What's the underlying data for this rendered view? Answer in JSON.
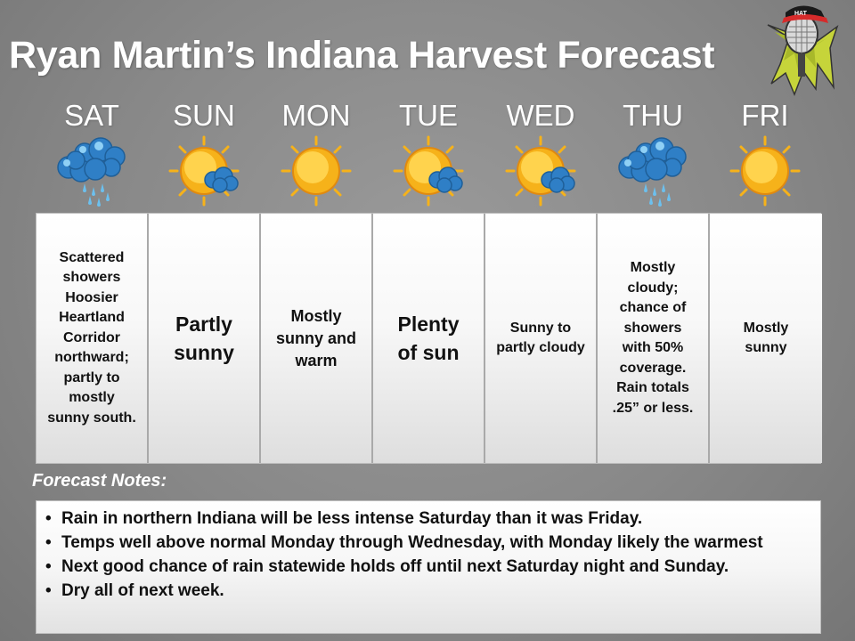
{
  "header": {
    "title": "Ryan Martin’s Indiana Harvest Forecast",
    "logo_text": "HAT"
  },
  "days": [
    {
      "label": "SAT",
      "icon": "rain-cloud-icon",
      "forecast": [
        "Scattered",
        "showers",
        "Hoosier",
        "Heartland",
        "Corridor",
        "northward;",
        "partly to",
        "mostly",
        "sunny south."
      ]
    },
    {
      "label": "SUN",
      "icon": "partly-sunny-icon",
      "forecast": [
        "Partly",
        "sunny"
      ]
    },
    {
      "label": "MON",
      "icon": "sun-icon",
      "forecast": [
        "Mostly",
        "sunny and",
        "warm"
      ]
    },
    {
      "label": "TUE",
      "icon": "partly-sunny-icon",
      "forecast": [
        "Plenty",
        "of sun"
      ]
    },
    {
      "label": "WED",
      "icon": "partly-sunny-icon",
      "forecast": [
        "Sunny to",
        "partly cloudy"
      ]
    },
    {
      "label": "THU",
      "icon": "rain-cloud-icon",
      "forecast": [
        "Mostly",
        "cloudy;",
        "chance of",
        "showers",
        "with 50%",
        "coverage.",
        "Rain totals",
        ".25” or less."
      ]
    },
    {
      "label": "FRI",
      "icon": "sun-icon",
      "forecast": [
        "Mostly",
        "sunny"
      ]
    }
  ],
  "notes": {
    "title": "Forecast Notes:",
    "items": [
      "Rain in northern Indiana will be less intense Saturday than it was Friday.",
      "Temps well above normal Monday through Wednesday, with Monday likely the warmest",
      "Next good chance of rain statewide holds off until next Saturday night and Sunday.",
      "Dry all of next week."
    ]
  },
  "colors": {
    "background": "#8a8a8a",
    "sun": "#f6b21a",
    "cloud": "#2f7fc6",
    "text_dark": "#111111",
    "title": "#ffffff"
  }
}
